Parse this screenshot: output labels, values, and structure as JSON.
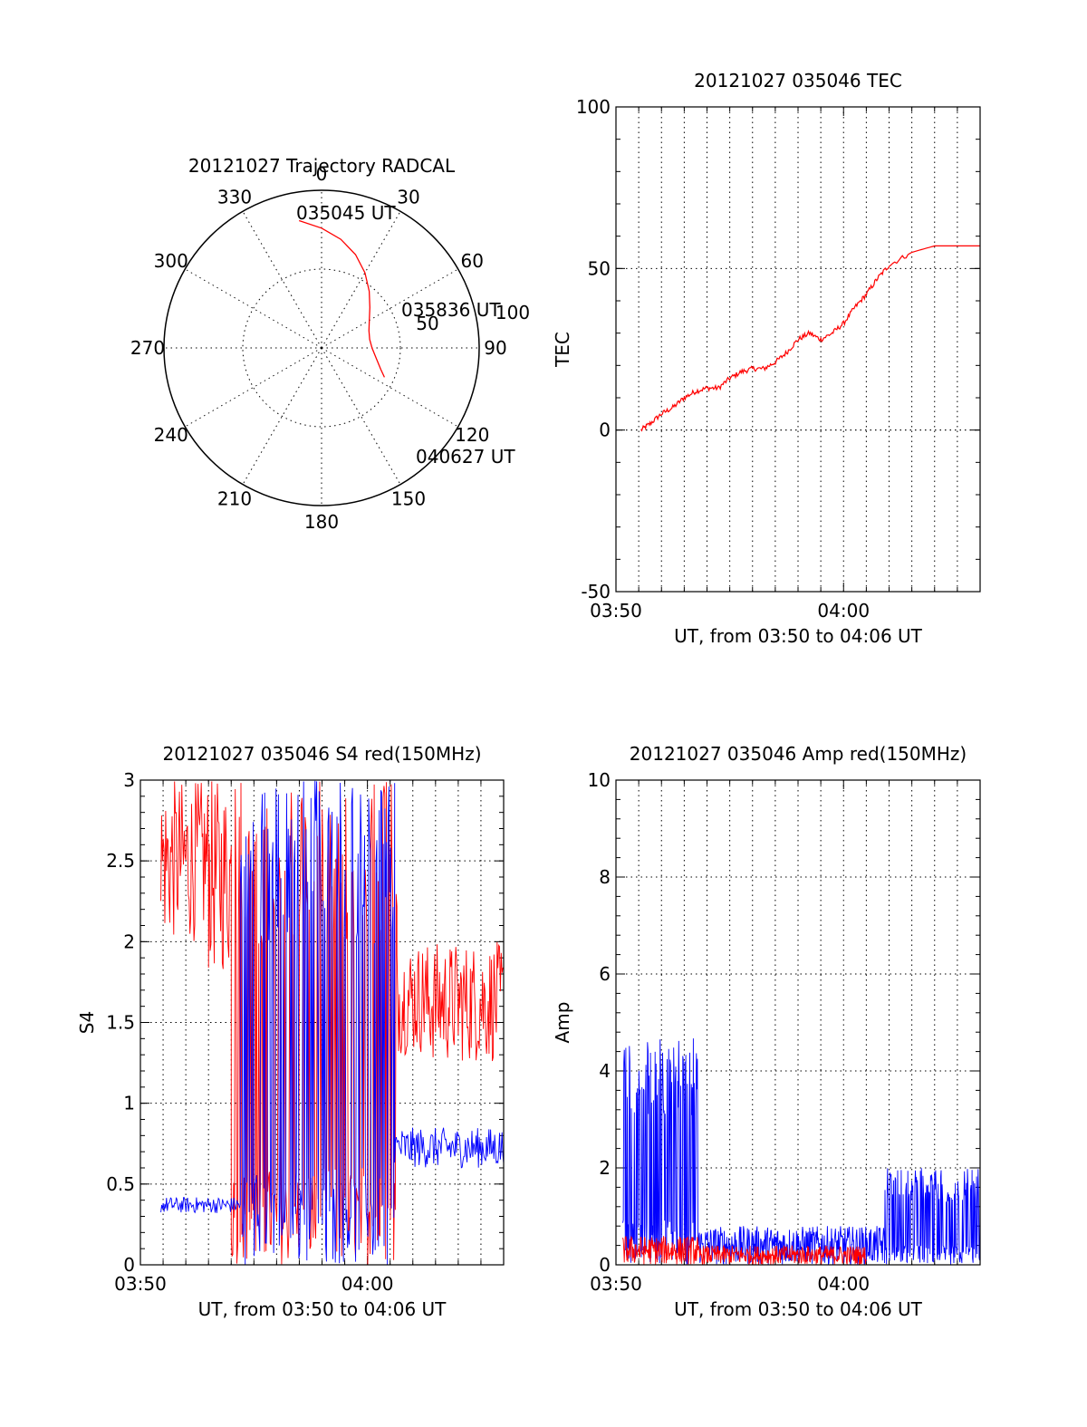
{
  "chart_data": [
    {
      "type": "polar",
      "title": "20121027 Trajectory RADCAL",
      "azimuth_labels": [
        "0",
        "30",
        "60",
        "90",
        "120",
        "150",
        "180",
        "210",
        "240",
        "270",
        "300",
        "330"
      ],
      "radius_labels": [
        "50",
        "100"
      ],
      "trajectory_labels": [
        "035045 UT",
        "035836 UT",
        "040627 UT"
      ],
      "trajectory": {
        "color": "#ff0000",
        "points": [
          [
            350,
            82
          ],
          [
            360,
            76
          ],
          [
            10,
            70
          ],
          [
            20,
            63
          ],
          [
            30,
            55
          ],
          [
            40,
            47
          ],
          [
            50,
            40
          ],
          [
            60,
            35
          ],
          [
            70,
            32
          ],
          [
            80,
            31
          ],
          [
            90,
            32
          ],
          [
            100,
            35
          ],
          [
            110,
            40
          ],
          [
            115,
            44
          ]
        ]
      }
    },
    {
      "type": "line",
      "title": "20121027 035046 TEC",
      "xlabel": "UT, from 03:50 to 04:06 UT",
      "ylabel": "TEC",
      "xlim": [
        0,
        16
      ],
      "ylim": [
        -50,
        100
      ],
      "xticks": [
        "03:50",
        "04:00"
      ],
      "yticks": [
        "-50",
        "0",
        "50",
        "100"
      ],
      "series": [
        {
          "color": "#ff0000",
          "x": [
            1.1,
            1.5,
            2,
            2.5,
            3,
            3.5,
            4,
            4.5,
            5,
            5.5,
            6,
            6.5,
            7,
            7.5,
            8,
            8.5,
            9,
            9.5,
            10,
            10.5,
            11,
            11.5,
            12,
            13,
            14,
            15,
            16
          ],
          "y": [
            0,
            2,
            5,
            7,
            10,
            12,
            13,
            13,
            16,
            18,
            19,
            19,
            21,
            24,
            28,
            30,
            28,
            30,
            33,
            38,
            42,
            47,
            51,
            55,
            57,
            57,
            57
          ]
        }
      ]
    },
    {
      "type": "line",
      "title": "20121027 035046 S4 red(150MHz)",
      "xlabel": "UT, from 03:50 to 04:06 UT",
      "ylabel": "S4",
      "xlim": [
        0,
        16
      ],
      "ylim": [
        0,
        3
      ],
      "xticks": [
        "03:50",
        "04:00"
      ],
      "yticks": [
        "0",
        "0.5",
        "1",
        "1.5",
        "2",
        "2.5",
        "3"
      ],
      "series": [
        {
          "color": "#ff0000",
          "segments": [
            {
              "x0": 0.9,
              "x1": 3.0,
              "lo": 2.0,
              "hi": 3.0
            },
            {
              "x0": 3.0,
              "x1": 4.0,
              "lo": 1.8,
              "hi": 3.0
            },
            {
              "x0": 4.0,
              "x1": 11.3,
              "lo": 0.0,
              "hi": 3.0
            },
            {
              "x0": 11.3,
              "x1": 12.5,
              "lo": 1.3,
              "hi": 2.0
            },
            {
              "x0": 12.5,
              "x1": 16,
              "lo": 1.25,
              "hi": 2.0
            }
          ]
        },
        {
          "color": "#0000ff",
          "segments": [
            {
              "x0": 0.9,
              "x1": 4.4,
              "lo": 0.32,
              "hi": 0.42
            },
            {
              "x0": 4.4,
              "x1": 11.2,
              "lo": 0.0,
              "hi": 3.0
            },
            {
              "x0": 11.2,
              "x1": 16,
              "lo": 0.6,
              "hi": 0.85
            }
          ]
        }
      ]
    },
    {
      "type": "line",
      "title": "20121027 035046 Amp red(150MHz)",
      "xlabel": "UT, from 03:50 to 04:06 UT",
      "ylabel": "Amp",
      "xlim": [
        0,
        16
      ],
      "ylim": [
        0,
        10
      ],
      "xticks": [
        "03:50",
        "04:00"
      ],
      "yticks": [
        "0",
        "2",
        "4",
        "6",
        "8",
        "10"
      ],
      "series": [
        {
          "color": "#0000ff",
          "segments": [
            {
              "x0": 0.3,
              "x1": 3.6,
              "lo": 0.0,
              "hi": 4.7
            },
            {
              "x0": 3.6,
              "x1": 11.8,
              "lo": 0.0,
              "hi": 0.8
            },
            {
              "x0": 11.8,
              "x1": 16,
              "lo": 0.0,
              "hi": 2.0
            }
          ]
        },
        {
          "color": "#ff0000",
          "segments": [
            {
              "x0": 0.3,
              "x1": 3.6,
              "lo": 0.0,
              "hi": 0.6
            },
            {
              "x0": 3.6,
              "x1": 11.0,
              "lo": 0.0,
              "hi": 0.4
            }
          ]
        }
      ]
    }
  ]
}
